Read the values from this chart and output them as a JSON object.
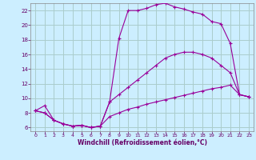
{
  "background_color": "#cceeff",
  "grid_color": "#aacccc",
  "line_color": "#990099",
  "marker_color": "#990099",
  "xlabel": "Windchill (Refroidissement éolien,°C)",
  "xlabel_color": "#660066",
  "tick_color": "#660066",
  "xlim": [
    -0.5,
    23.5
  ],
  "ylim": [
    5.5,
    23.0
  ],
  "yticks": [
    6,
    8,
    10,
    12,
    14,
    16,
    18,
    20,
    22
  ],
  "xticks": [
    0,
    1,
    2,
    3,
    4,
    5,
    6,
    7,
    8,
    9,
    10,
    11,
    12,
    13,
    14,
    15,
    16,
    17,
    18,
    19,
    20,
    21,
    22,
    23
  ],
  "series1": [
    8.3,
    9.0,
    7.0,
    6.5,
    6.2,
    6.3,
    6.0,
    6.2,
    9.5,
    18.2,
    22.0,
    22.0,
    22.3,
    22.8,
    23.0,
    22.5,
    22.2,
    21.8,
    21.5,
    20.5,
    20.2,
    17.5,
    10.5,
    10.2
  ],
  "series2": [
    8.3,
    8.0,
    7.0,
    6.5,
    6.2,
    6.3,
    6.0,
    6.2,
    9.5,
    10.5,
    11.5,
    12.5,
    13.5,
    14.5,
    15.5,
    16.0,
    16.3,
    16.3,
    16.0,
    15.5,
    14.5,
    13.5,
    10.5,
    10.2
  ],
  "series3": [
    8.3,
    8.0,
    7.0,
    6.5,
    6.2,
    6.3,
    6.0,
    6.2,
    7.5,
    8.0,
    8.5,
    8.8,
    9.2,
    9.5,
    9.8,
    10.1,
    10.4,
    10.7,
    11.0,
    11.3,
    11.5,
    11.8,
    10.5,
    10.2
  ]
}
